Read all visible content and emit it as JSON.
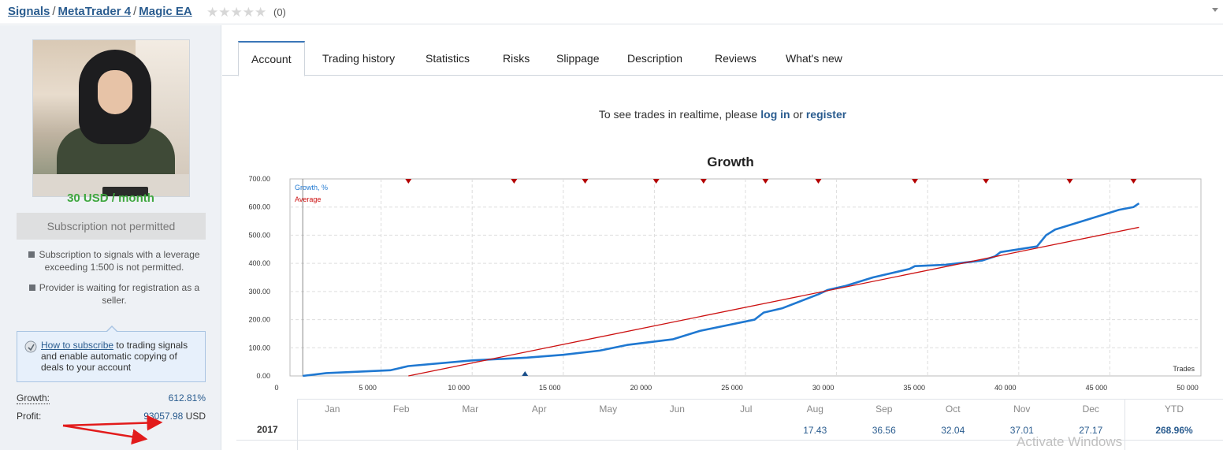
{
  "breadcrumb": {
    "items": [
      "Signals",
      "MetaTrader 4",
      "Magic EA"
    ],
    "separator": "/"
  },
  "rating": {
    "stars": 0,
    "max_stars": 5,
    "count_text": "(0)"
  },
  "sidebar": {
    "price": "30 USD / month",
    "subscription_button": "Subscription not permitted",
    "notes": [
      "Subscription to signals with a leverage exceeding 1:500 is not permitted.",
      "Provider is waiting for registration as a seller."
    ],
    "howto": {
      "link": "How to subscribe",
      "text": " to trading signals and enable automatic copying of deals to your account"
    },
    "stats": {
      "growth_label": "Growth:",
      "growth_value": "612.81%",
      "profit_label": "Profit:",
      "profit_value": "93057.98",
      "profit_unit": "USD"
    }
  },
  "tabs": [
    "Account",
    "Trading history",
    "Statistics",
    "Risks",
    "Slippage",
    "Description",
    "Reviews",
    "What's new"
  ],
  "active_tab": "Account",
  "realtime": {
    "prefix": "To see trades in realtime, please ",
    "login": "log in",
    "middle": " or ",
    "register": "register"
  },
  "chart_data": {
    "type": "line",
    "title": "Growth",
    "xlabel": "Trades",
    "ylabel": "",
    "xlim": [
      0,
      50000
    ],
    "ylim": [
      0,
      700
    ],
    "x_ticks": [
      "0",
      "5 000",
      "10 000",
      "15 000",
      "20 000",
      "25 000",
      "30 000",
      "35 000",
      "40 000",
      "45 000",
      "50 000"
    ],
    "y_ticks": [
      "0.00",
      "100.00",
      "200.00",
      "300.00",
      "400.00",
      "500.00",
      "600.00",
      "700.00"
    ],
    "grid": true,
    "legend": "top-left",
    "series": [
      {
        "name": "Growth, %",
        "color": "#1f78d1",
        "x": [
          700,
          2000,
          5500,
          6500,
          10000,
          13000,
          15000,
          17000,
          18500,
          21000,
          22500,
          25500,
          26000,
          27000,
          28000,
          29000,
          29500,
          30500,
          32000,
          34000,
          34300,
          36000,
          38000,
          38700,
          39000,
          40000,
          41000,
          41500,
          42000,
          44000,
          45500,
          46300,
          46600
        ],
        "y": [
          0,
          10,
          20,
          35,
          55,
          65,
          75,
          90,
          110,
          130,
          160,
          200,
          225,
          240,
          265,
          290,
          305,
          320,
          350,
          380,
          390,
          395,
          410,
          425,
          440,
          450,
          460,
          500,
          520,
          560,
          590,
          600,
          613
        ]
      },
      {
        "name": "Average",
        "color": "#cc1111",
        "x": [
          6500,
          46600
        ],
        "y": [
          0,
          528
        ]
      }
    ],
    "markers": {
      "top_red_triangles_x": [
        6500,
        12300,
        16200,
        20100,
        22700,
        26100,
        29000,
        34300,
        38200,
        42800,
        46300
      ],
      "bottom_blue_triangle_x": 12900
    }
  },
  "monthly": {
    "months": [
      "Jan",
      "Feb",
      "Mar",
      "Apr",
      "May",
      "Jun",
      "Jul",
      "Aug",
      "Sep",
      "Oct",
      "Nov",
      "Dec"
    ],
    "ytd_label": "YTD",
    "rows": [
      {
        "year": "2017",
        "values": [
          "",
          "",
          "",
          "",
          "",
          "",
          "",
          "17.43",
          "36.56",
          "32.04",
          "37.01",
          "27.17"
        ],
        "ytd": "268.96%"
      }
    ]
  },
  "watermark": "Activate Windows"
}
